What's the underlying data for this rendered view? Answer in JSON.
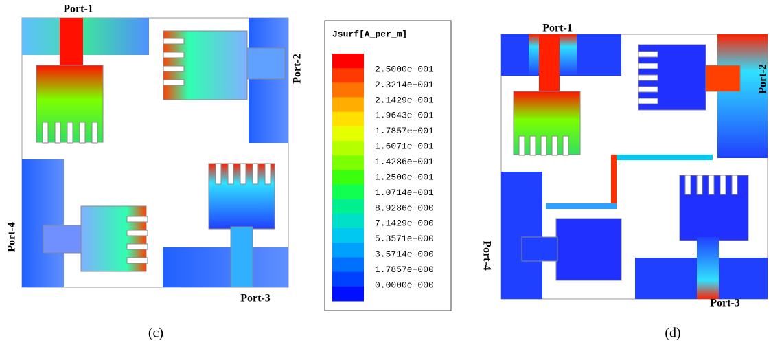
{
  "figure": {
    "panel_c": {
      "ports": [
        "Port-1",
        "Port-2",
        "Port-3",
        "Port-4"
      ],
      "caption": "(c)"
    },
    "panel_d": {
      "ports": [
        "Port-1",
        "Port-2",
        "Port-3",
        "Port-4"
      ],
      "caption": "(d)"
    },
    "legend": {
      "title": "Jsurf[A_per_m]",
      "labels": [
        "2.5000e+001",
        "2.3214e+001",
        "2.1429e+001",
        "1.9643e+001",
        "1.7857e+001",
        "1.6071e+001",
        "1.4286e+001",
        "1.2500e+001",
        "1.0714e+001",
        "8.9286e+000",
        "7.1429e+000",
        "5.3571e+000",
        "3.5714e+000",
        "1.7857e+000",
        "0.0000e+000"
      ],
      "colors": [
        "#ff0000",
        "#ff3a00",
        "#ff7400",
        "#ffae00",
        "#ffe000",
        "#e6ff00",
        "#b4ff00",
        "#7cff00",
        "#3cff10",
        "#10ff50",
        "#00f090",
        "#00e0c8",
        "#00c8f0",
        "#00a0ff",
        "#0070ff",
        "#0040ff",
        "#0010ff"
      ]
    }
  }
}
